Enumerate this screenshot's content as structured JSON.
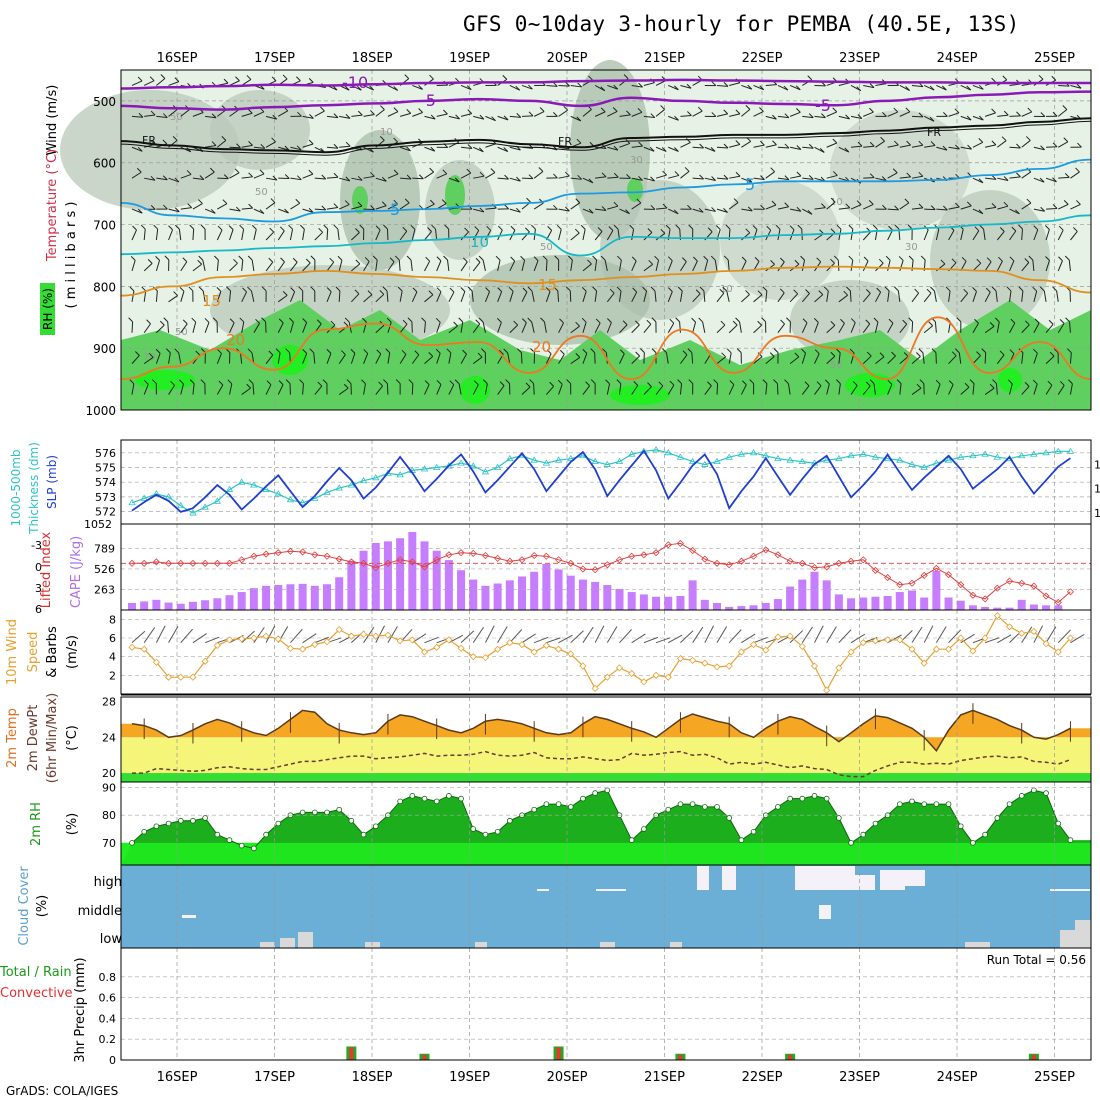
{
  "title": "GFS 0~10day 3-hourly for PEMBA (40.5E, 13S)",
  "footer": "GrADS: COLA/IGES",
  "colors": {
    "rh_dark": "#5fcf5f",
    "rh_light": "#e6f2e6",
    "sfc_green": "#00cc00",
    "temp_orange": "#f5a623",
    "dewpt_yellow": "#f5f57a",
    "cloud_blue": "#6baed6",
    "precip_green": "#22aa22",
    "precip_red": "#ee3333",
    "cape_purple": "#c77dff",
    "slp_blue": "#1f3fcf",
    "thick_cyan": "#2ec4c4",
    "li_red": "#e04040",
    "wind_orange": "#e8a030"
  },
  "chart_data": [
    {
      "type": "contour",
      "panel": "upper_air",
      "ylabel_wind": "Wind (m/s)",
      "ylabel_temp": "Temperature (°C)",
      "ylabel_rh": "RH (%)",
      "ylabel_p": "( m i l l i b a r s )",
      "y_ticks": [
        500,
        600,
        700,
        800,
        900,
        1000
      ],
      "ylim": [
        450,
        1000
      ],
      "dates": [
        "16SEP",
        "17SEP",
        "18SEP",
        "19SEP",
        "20SEP",
        "21SEP",
        "22SEP",
        "23SEP",
        "24SEP",
        "25SEP"
      ],
      "isotherm_labels": [
        "-10",
        "-5",
        "FR",
        "5",
        "10",
        "15",
        "20"
      ],
      "rh_labels": [
        "10",
        "30",
        "50",
        "70"
      ],
      "isotherms": [
        {
          "label": "-10",
          "value": -10,
          "p": [
            480,
            478,
            476,
            474,
            475,
            473,
            471,
            470,
            470,
            468,
            467,
            466,
            467,
            468,
            469,
            470,
            470,
            471,
            471,
            471
          ]
        },
        {
          "label": "-5",
          "value": -5,
          "p": [
            508,
            512,
            514,
            510,
            507,
            504,
            500,
            497,
            500,
            508,
            495,
            500,
            503,
            505,
            507,
            500,
            494,
            490,
            486,
            485
          ]
        },
        {
          "label": "FR",
          "value": 0,
          "p": [
            565,
            572,
            578,
            580,
            583,
            572,
            566,
            563,
            570,
            575,
            560,
            558,
            555,
            555,
            552,
            548,
            543,
            540,
            534,
            528
          ]
        },
        {
          "label": "5",
          "value": 5,
          "p": [
            665,
            685,
            690,
            695,
            680,
            678,
            675,
            670,
            665,
            650,
            648,
            640,
            635,
            630,
            630,
            630,
            628,
            620,
            610,
            595
          ]
        },
        {
          "label": "10",
          "value": 10,
          "p": [
            748,
            745,
            742,
            738,
            735,
            730,
            725,
            720,
            715,
            750,
            720,
            722,
            722,
            717,
            715,
            710,
            705,
            700,
            695,
            685
          ]
        },
        {
          "label": "15",
          "value": 15,
          "p": [
            815,
            800,
            785,
            780,
            775,
            780,
            785,
            790,
            795,
            790,
            785,
            780,
            775,
            770,
            768,
            770,
            772,
            775,
            790,
            810
          ]
        },
        {
          "label": "20",
          "value": 20,
          "p": [
            950,
            930,
            900,
            935,
            870,
            860,
            895,
            890,
            940,
            880,
            950,
            870,
            940,
            880,
            900,
            950,
            850,
            940,
            890,
            950
          ]
        }
      ]
    },
    {
      "type": "line",
      "panel": "slp_thickness",
      "ylabel_thick": "Thickness (dm)",
      "ylabel_thick2": "1000-500mb",
      "ylabel_slp": "SLP (mb)",
      "thick_ticks": [
        "572",
        "573",
        "574",
        "575",
        "576"
      ],
      "slp_ticks": [
        "1014",
        "1016",
        "1018"
      ],
      "slp_bottom_label": "1052",
      "thickness": [
        572.6,
        572.9,
        573.2,
        573.0,
        572.4,
        571.9,
        572.3,
        572.7,
        573.5,
        574.0,
        573.8,
        573.5,
        573.2,
        572.8,
        572.6,
        572.9,
        573.3,
        573.6,
        573.8,
        574.1,
        574.3,
        574.6,
        574.5,
        574.8,
        574.9,
        575.0,
        575.1,
        575.3,
        575.1,
        574.7,
        575.0,
        575.6,
        575.8,
        575.5,
        575.3,
        575.5,
        575.6,
        575.8,
        575.4,
        575.2,
        575.4,
        575.9,
        576.1,
        576.2,
        576.0,
        575.7,
        575.4,
        575.2,
        575.4,
        575.7,
        575.9,
        576.0,
        575.8,
        575.6,
        575.5,
        575.4,
        575.3,
        575.5,
        575.6,
        575.8,
        575.9,
        575.7,
        575.6,
        575.5,
        575.2,
        575.0,
        575.3,
        575.5,
        575.7,
        575.8,
        575.9,
        575.7,
        575.6,
        575.8,
        575.9,
        576.0,
        576.1,
        576.1
      ],
      "slp": [
        1014.2,
        1014.9,
        1015.5,
        1015.0,
        1014.1,
        1014.4,
        1015.3,
        1016.3,
        1015.5,
        1014.3,
        1015.2,
        1016.2,
        1017.1,
        1015.8,
        1014.5,
        1015.4,
        1016.6,
        1017.7,
        1016.7,
        1015.2,
        1016.1,
        1017.3,
        1018.6,
        1017.3,
        1015.8,
        1016.8,
        1017.9,
        1018.8,
        1017.4,
        1015.7,
        1016.7,
        1017.8,
        1018.9,
        1017.6,
        1015.8,
        1017.0,
        1018.2,
        1019.0,
        1017.6,
        1015.4,
        1016.7,
        1017.9,
        1019.1,
        1017.5,
        1015.2,
        1016.5,
        1017.9,
        1018.8,
        1017.2,
        1014.4,
        1015.8,
        1017.0,
        1018.5,
        1017.0,
        1015.5,
        1016.8,
        1018.0,
        1018.7,
        1017.0,
        1015.3,
        1016.3,
        1017.4,
        1018.8,
        1017.3,
        1015.9,
        1016.9,
        1017.8,
        1018.7,
        1017.6,
        1016.0,
        1016.8,
        1017.6,
        1018.6,
        1017.0,
        1015.6,
        1016.7,
        1017.8,
        1018.5
      ]
    },
    {
      "type": "bar",
      "panel": "cape_li",
      "ylabel_li": "Lifted Index",
      "ylabel_cape": "CAPE (J/kg)",
      "li_ticks": [
        "-3",
        "0",
        "3",
        "6"
      ],
      "cape_ticks": [
        "263",
        "526",
        "789"
      ],
      "cape": [
        90,
        110,
        130,
        95,
        80,
        105,
        125,
        150,
        190,
        230,
        280,
        310,
        320,
        330,
        335,
        310,
        330,
        420,
        630,
        760,
        860,
        880,
        920,
        1000,
        880,
        760,
        640,
        510,
        390,
        310,
        340,
        380,
        430,
        490,
        590,
        520,
        440,
        390,
        360,
        320,
        270,
        230,
        200,
        170,
        170,
        180,
        380,
        130,
        90,
        40,
        50,
        60,
        90,
        140,
        300,
        390,
        490,
        380,
        200,
        150,
        160,
        170,
        180,
        230,
        250,
        160,
        500,
        160,
        120,
        60,
        40,
        30,
        30,
        130,
        70,
        60,
        60,
        0
      ],
      "lifted_index": [
        0,
        0,
        -0.2,
        0,
        0,
        0,
        0,
        0,
        0,
        -0.5,
        -1,
        -1.3,
        -1.5,
        -1.7,
        -1.6,
        -1.2,
        -1,
        -0.6,
        -0.2,
        0,
        0.6,
        0,
        -0.5,
        -0.2,
        0.5,
        -0.5,
        -1.2,
        -1.5,
        -1.4,
        -1.1,
        -0.7,
        -0.3,
        -0.5,
        -1.1,
        -1,
        -0.5,
        0,
        0.8,
        0.9,
        0.2,
        -0.5,
        -1,
        -1.2,
        -1.5,
        -2.6,
        -2.8,
        -1.8,
        -0.6,
        0,
        0.2,
        -0.3,
        -1,
        -1.9,
        -1.2,
        -0.3,
        0,
        0.6,
        0.5,
        0,
        -0.3,
        -0.5,
        1,
        2,
        3,
        2.8,
        1.7,
        0.7,
        1.6,
        3,
        4.5,
        5,
        3.5,
        2.5,
        2.8,
        3.2,
        4.6,
        5.5,
        4
      ]
    },
    {
      "type": "line",
      "panel": "wind10m",
      "ylabel1": "10m Wind",
      "ylabel2": "Speed",
      "ylabel3": "& Barbs",
      "ylabel_units": "(m/s)",
      "y_ticks": [
        "2",
        "4",
        "6",
        "8"
      ],
      "ylim": [
        0,
        9
      ],
      "speed": [
        5.0,
        4.8,
        3.4,
        1.8,
        1.8,
        1.8,
        3.5,
        5.2,
        5.8,
        5.9,
        6.0,
        6.2,
        5.9,
        4.9,
        4.8,
        5.3,
        5.6,
        6.9,
        6.2,
        6.4,
        6.2,
        6.3,
        5.7,
        5.8,
        4.5,
        5.0,
        5.8,
        4.9,
        4.0,
        3.9,
        4.8,
        5.5,
        5.3,
        4.5,
        5.2,
        4.8,
        4.3,
        3.0,
        0.6,
        1.8,
        2.8,
        2.2,
        1.3,
        2.0,
        1.8,
        3.8,
        3.6,
        3.3,
        2.9,
        3.0,
        4.5,
        5.3,
        4.7,
        6.1,
        6.2,
        5.1,
        3.0,
        0.4,
        2.8,
        4.5,
        5.5,
        5.7,
        5.8,
        5.8,
        4.8,
        3.3,
        4.8,
        4.8,
        6.0,
        4.6,
        6.0,
        8.4,
        7.2,
        6.5,
        6.7,
        5.4,
        4.5,
        6.0
      ]
    },
    {
      "type": "area",
      "panel": "temp2m",
      "ylabel1": "2m Temp",
      "ylabel2": "2m DewPt",
      "ylabel3": "(6hr Min/Max)",
      "ylabel_units": "(°C)",
      "y_ticks": [
        "20",
        "24",
        "28"
      ],
      "ylim": [
        19,
        28.5
      ],
      "temp": [
        25.5,
        25.3,
        24.8,
        24.0,
        24.2,
        24.8,
        25.5,
        26.0,
        25.6,
        25.0,
        24.5,
        24.2,
        25.0,
        26.0,
        27.0,
        26.8,
        25.5,
        24.8,
        24.5,
        24.3,
        24.5,
        25.8,
        26.5,
        26.3,
        25.8,
        25.3,
        24.8,
        24.5,
        25.0,
        25.8,
        26.0,
        25.8,
        25.5,
        25.0,
        24.5,
        24.3,
        24.5,
        25.5,
        26.3,
        26.0,
        25.5,
        25.0,
        24.6,
        24.0,
        25.0,
        26.0,
        26.6,
        26.2,
        25.8,
        25.5,
        24.5,
        24.0,
        25.0,
        25.8,
        26.3,
        26.0,
        25.2,
        24.5,
        23.5,
        24.5,
        25.5,
        26.4,
        26.2,
        25.6,
        25.0,
        24.0,
        22.5,
        24.8,
        26.5,
        27.0,
        26.5,
        26.0,
        25.3,
        24.8,
        24.0,
        23.8,
        24.3,
        25.0
      ],
      "dewpt": [
        20.0,
        20.0,
        20.5,
        20.4,
        20.3,
        20.2,
        20.3,
        20.6,
        20.7,
        20.5,
        20.4,
        20.4,
        20.7,
        21.0,
        21.3,
        21.3,
        21.5,
        21.7,
        21.9,
        21.9,
        21.6,
        21.7,
        21.8,
        22.0,
        22.2,
        21.9,
        22.0,
        22.0,
        22.1,
        22.4,
        22.0,
        21.9,
        22.0,
        22.3,
        21.7,
        21.6,
        21.6,
        21.8,
        21.6,
        21.4,
        21.5,
        22.2,
        22.0,
        22.1,
        22.3,
        22.4,
        22.0,
        22.1,
        21.7,
        21.0,
        21.2,
        21.0,
        21.2,
        20.9,
        20.6,
        20.8,
        20.5,
        20.4,
        19.8,
        19.6,
        19.6,
        20.3,
        20.8,
        21.2,
        21.2,
        21.0,
        21.1,
        21.0,
        21.4,
        21.6,
        21.8,
        21.9,
        21.7,
        21.8,
        21.3,
        21.2,
        21.0,
        21.5
      ]
    },
    {
      "type": "area",
      "panel": "rh2m",
      "ylabel": "2m RH",
      "ylabel_units": "(%)",
      "y_ticks": [
        "70",
        "80",
        "90"
      ],
      "ylim": [
        62,
        92
      ],
      "rh": [
        70,
        74,
        76,
        77,
        78,
        78,
        79,
        73,
        71,
        69,
        68,
        73,
        77,
        80,
        81,
        81,
        81,
        82,
        78,
        73,
        76,
        80,
        85,
        87,
        86,
        85,
        87,
        86,
        75,
        73,
        74,
        78,
        80,
        82,
        84,
        84,
        83,
        86,
        88,
        89,
        80,
        71,
        75,
        80,
        82,
        84,
        84,
        83,
        83,
        79,
        71,
        74,
        80,
        83,
        86,
        86,
        87,
        86,
        79,
        70,
        73,
        77,
        80,
        84,
        85,
        84,
        84,
        84,
        76,
        70,
        73,
        79,
        84,
        87,
        89,
        88,
        77,
        71
      ],
      "rh_tail": [
        70,
        73,
        77,
        79,
        80,
        81,
        82,
        83,
        78,
        72,
        74,
        78,
        81,
        82,
        84,
        72
      ]
    },
    {
      "type": "area",
      "panel": "cloud",
      "ylabel": "Cloud Cover",
      "ylabel_units": "(%)",
      "levels": [
        "high",
        "middle",
        "low"
      ]
    },
    {
      "type": "bar",
      "panel": "precip",
      "ylabel": "3hr Precip (mm)",
      "ylabel2a": "Total / Rain",
      "ylabel2b": "Convective",
      "run_total_label": "Run Total = 0.56",
      "y_ticks": [
        "0",
        "0.2",
        "0.4",
        "0.6",
        "0.8"
      ],
      "ylim": [
        0,
        1.0
      ],
      "events": [
        {
          "t": 18,
          "total": 0.13,
          "conv": 0.12
        },
        {
          "t": 24,
          "total": 0.06,
          "conv": 0.05
        },
        {
          "t": 35,
          "total": 0.13,
          "conv": 0.12
        },
        {
          "t": 45,
          "total": 0.06,
          "conv": 0.05
        },
        {
          "t": 54,
          "total": 0.06,
          "conv": 0.05
        },
        {
          "t": 74,
          "total": 0.06,
          "conv": 0.05
        },
        {
          "t": 92,
          "total": 0.06,
          "conv": 0.05
        }
      ]
    }
  ]
}
